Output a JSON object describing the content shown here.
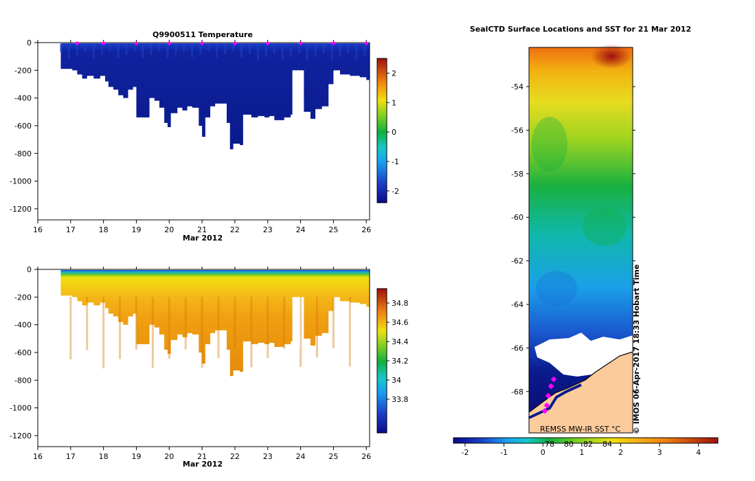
{
  "colors": {
    "land": "#fbcb9c",
    "ice": "#ffffff",
    "track_marker": "#ff00ff",
    "deep_blue": "#0a1a8c",
    "salinity_orange": "#f0a010"
  },
  "chart_data": [
    {
      "id": "temperature",
      "type": "heatmap",
      "title": "Q9900511  Temperature",
      "xlabel": "Mar 2012",
      "ylabel": "",
      "xlim": [
        16,
        26.1
      ],
      "ylim": [
        -1280,
        0
      ],
      "x_ticks": [
        16,
        17,
        18,
        19,
        20,
        21,
        22,
        23,
        24,
        25,
        26
      ],
      "y_ticks": [
        0,
        -200,
        -400,
        -600,
        -800,
        -1000,
        -1200
      ],
      "colorbar": {
        "min": -2.4,
        "max": 2.5,
        "ticks": [
          2,
          1,
          0,
          -1,
          -2
        ]
      },
      "profile_days": [
        17.2,
        18.0,
        19.0,
        20.0,
        21.0,
        22.0,
        23.0,
        24.0,
        25.0,
        26.0
      ],
      "depth_profile": [
        [
          16.7,
          -190
        ],
        [
          16.95,
          -190
        ],
        [
          17.05,
          -200
        ],
        [
          17.2,
          -230
        ],
        [
          17.35,
          -260
        ],
        [
          17.5,
          -240
        ],
        [
          17.7,
          -260
        ],
        [
          17.9,
          -240
        ],
        [
          18.05,
          -280
        ],
        [
          18.15,
          -320
        ],
        [
          18.3,
          -340
        ],
        [
          18.45,
          -380
        ],
        [
          18.6,
          -400
        ],
        [
          18.75,
          -340
        ],
        [
          18.9,
          -320
        ],
        [
          19.0,
          -540
        ],
        [
          19.2,
          -540
        ],
        [
          19.4,
          -400
        ],
        [
          19.55,
          -420
        ],
        [
          19.7,
          -470
        ],
        [
          19.85,
          -580
        ],
        [
          19.95,
          -610
        ],
        [
          20.05,
          -510
        ],
        [
          20.25,
          -470
        ],
        [
          20.4,
          -490
        ],
        [
          20.55,
          -460
        ],
        [
          20.7,
          -470
        ],
        [
          20.9,
          -600
        ],
        [
          21.0,
          -680
        ],
        [
          21.1,
          -540
        ],
        [
          21.25,
          -460
        ],
        [
          21.4,
          -440
        ],
        [
          21.6,
          -440
        ],
        [
          21.75,
          -580
        ],
        [
          21.85,
          -770
        ],
        [
          21.95,
          -730
        ],
        [
          22.15,
          -740
        ],
        [
          22.25,
          -520
        ],
        [
          22.5,
          -540
        ],
        [
          22.7,
          -530
        ],
        [
          22.9,
          -540
        ],
        [
          23.05,
          -530
        ],
        [
          23.2,
          -560
        ],
        [
          23.5,
          -540
        ],
        [
          23.7,
          -520
        ],
        [
          23.9,
          -200
        ],
        [
          24.1,
          -500
        ],
        [
          24.3,
          -550
        ],
        [
          24.45,
          -480
        ],
        [
          24.65,
          -460
        ],
        [
          24.85,
          -300
        ],
        [
          25.0,
          -200
        ],
        [
          25.2,
          -230
        ],
        [
          25.5,
          -240
        ],
        [
          25.8,
          -250
        ],
        [
          26.0,
          -270
        ],
        [
          26.1,
          -270
        ]
      ],
      "gap_days": [
        23.75,
        23.98
      ]
    },
    {
      "id": "salinity",
      "type": "heatmap",
      "title": "",
      "xlabel": "Mar 2012",
      "ylabel": "",
      "xlim": [
        16,
        26.1
      ],
      "ylim": [
        -1280,
        0
      ],
      "x_ticks": [
        16,
        17,
        18,
        19,
        20,
        21,
        22,
        23,
        24,
        25,
        26
      ],
      "y_ticks": [
        0,
        -200,
        -400,
        -600,
        -800,
        -1000,
        -1200
      ],
      "colorbar": {
        "min": 33.45,
        "max": 34.95,
        "ticks": [
          34.8,
          34.6,
          34.4,
          34.2,
          34,
          33.8
        ]
      }
    },
    {
      "id": "sst_map",
      "type": "heatmap",
      "title": "SealCTD Surface Locations and SST for 21 Mar 2012",
      "ylim": [
        -69.9,
        -52.2
      ],
      "y_ticks": [
        -54,
        -56,
        -58,
        -60,
        -62,
        -64,
        -66,
        -68
      ],
      "colorbar": {
        "min": -2.3,
        "max": 4.5,
        "ticks": [
          -2,
          -1,
          0,
          1,
          2,
          3,
          4
        ],
        "inner_ticks": [
          "78",
          "80",
          "82",
          "84"
        ]
      },
      "annotations": [
        "REMSS MW-IR SST °C",
        "© IMOS 06-Apr-2017 18:33 Hobart Time"
      ]
    }
  ]
}
